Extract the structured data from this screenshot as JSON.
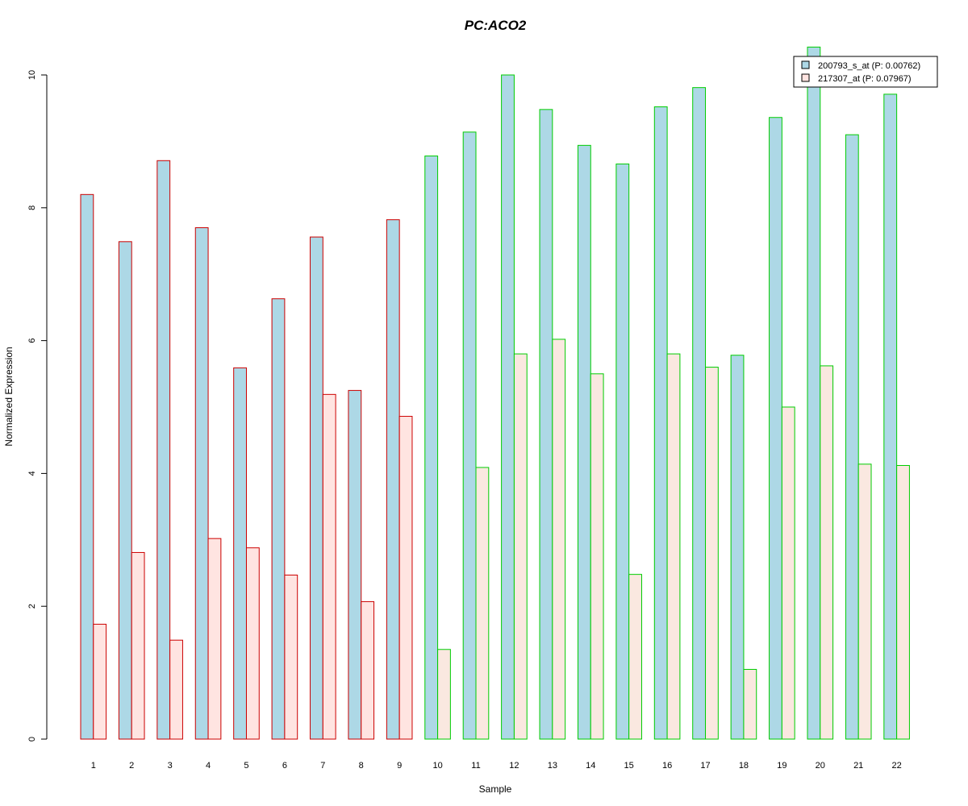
{
  "chart_data": {
    "type": "bar",
    "title": "PC:ACO2",
    "title_color": "#0000cc",
    "xlabel": "Sample",
    "ylabel": "Normalized Expression",
    "ylim": [
      0,
      10
    ],
    "yticks": [
      0,
      2,
      4,
      6,
      8,
      10
    ],
    "categories": [
      "1",
      "2",
      "3",
      "4",
      "5",
      "6",
      "7",
      "8",
      "9",
      "10",
      "11",
      "12",
      "13",
      "14",
      "15",
      "16",
      "17",
      "18",
      "19",
      "20",
      "21",
      "22"
    ],
    "series": [
      {
        "name": "200793_s_at (P: 0.00762)",
        "fill": "#add8e6",
        "values": [
          8.2,
          7.49,
          8.71,
          7.7,
          5.59,
          6.63,
          7.56,
          5.25,
          7.82,
          8.78,
          9.14,
          10.0,
          9.48,
          8.94,
          8.66,
          9.52,
          9.81,
          5.78,
          9.36,
          10.42,
          9.1,
          9.71
        ]
      },
      {
        "name": "217307_at (P: 0.07967)",
        "fill_group1": "#ffe4e1",
        "fill_group2": "#fae8e0",
        "values": [
          1.73,
          2.81,
          1.49,
          3.02,
          2.88,
          2.47,
          5.19,
          2.07,
          4.86,
          1.35,
          4.09,
          5.8,
          6.02,
          5.5,
          2.48,
          5.8,
          5.6,
          1.05,
          5.0,
          5.62,
          4.14,
          4.12
        ]
      }
    ],
    "groups": [
      {
        "samples": [
          1,
          9
        ],
        "border": "#cc0000"
      },
      {
        "samples": [
          10,
          22
        ],
        "border": "#00cc00"
      }
    ],
    "legend_position": "top-right",
    "grid": false
  }
}
